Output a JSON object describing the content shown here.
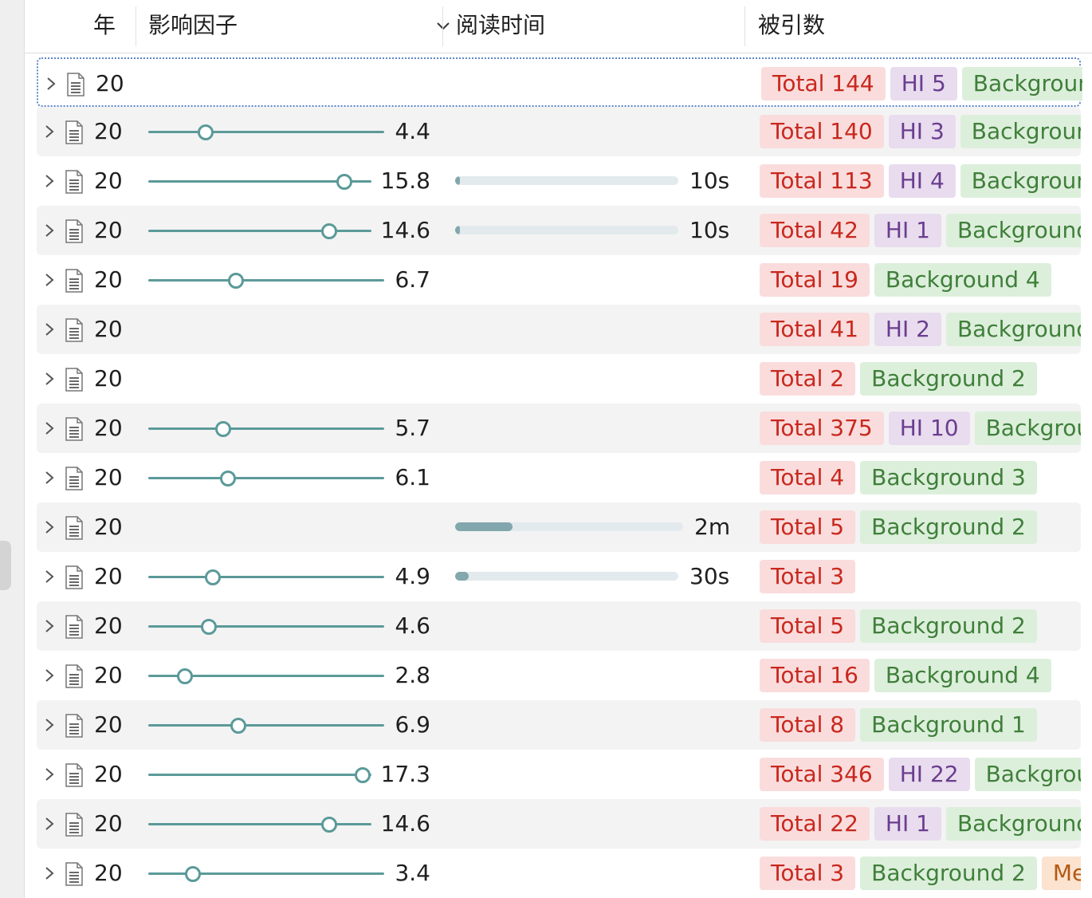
{
  "columns": {
    "year": "年",
    "impact_factor": "影响因子",
    "reading_time": "阅读时间",
    "citations": "被引数"
  },
  "icons": {
    "expand": "chevron-right-icon",
    "item": "document-icon",
    "sort": "chevron-down-icon"
  },
  "colors": {
    "slider": "#5b9a99",
    "total_tag": "#fadcdc",
    "hi_tag": "#e8dcee",
    "background_tag": "#dcefdb",
    "me_tag": "#fbe3cf"
  },
  "rows": [
    {
      "year": "20",
      "impact_factor": null,
      "if_text": "",
      "reading_time": null,
      "rt_text": "",
      "tags": [
        {
          "type": "total",
          "text": "Total 144"
        },
        {
          "type": "hi",
          "text": "HI 5"
        },
        {
          "type": "bg",
          "text": "Background"
        }
      ]
    },
    {
      "year": "20",
      "impact_factor": 4.4,
      "if_text": "4.4",
      "reading_time": null,
      "rt_text": "",
      "tags": [
        {
          "type": "total",
          "text": "Total 140"
        },
        {
          "type": "hi",
          "text": "HI 3"
        },
        {
          "type": "bg",
          "text": "Background"
        }
      ]
    },
    {
      "year": "20",
      "impact_factor": 15.8,
      "if_text": "15.8",
      "reading_time": 0.02,
      "rt_text": "10s",
      "tags": [
        {
          "type": "total",
          "text": "Total 113"
        },
        {
          "type": "hi",
          "text": "HI 4"
        },
        {
          "type": "bg",
          "text": "Background"
        }
      ]
    },
    {
      "year": "20",
      "impact_factor": 14.6,
      "if_text": "14.6",
      "reading_time": 0.02,
      "rt_text": "10s",
      "tags": [
        {
          "type": "total",
          "text": "Total 42"
        },
        {
          "type": "hi",
          "text": "HI 1"
        },
        {
          "type": "bg",
          "text": "Background"
        }
      ]
    },
    {
      "year": "20",
      "impact_factor": 6.7,
      "if_text": "6.7",
      "reading_time": null,
      "rt_text": "",
      "tags": [
        {
          "type": "total",
          "text": "Total 19"
        },
        {
          "type": "bg",
          "text": "Background 4"
        }
      ]
    },
    {
      "year": "20",
      "impact_factor": null,
      "if_text": "",
      "reading_time": null,
      "rt_text": "",
      "tags": [
        {
          "type": "total",
          "text": "Total 41"
        },
        {
          "type": "hi",
          "text": "HI 2"
        },
        {
          "type": "bg",
          "text": "Background"
        }
      ]
    },
    {
      "year": "20",
      "impact_factor": null,
      "if_text": "",
      "reading_time": null,
      "rt_text": "",
      "tags": [
        {
          "type": "total",
          "text": "Total 2"
        },
        {
          "type": "bg",
          "text": "Background 2"
        }
      ]
    },
    {
      "year": "20",
      "impact_factor": 5.7,
      "if_text": "5.7",
      "reading_time": null,
      "rt_text": "",
      "tags": [
        {
          "type": "total",
          "text": "Total 375"
        },
        {
          "type": "hi",
          "text": "HI 10"
        },
        {
          "type": "bg",
          "text": "Background"
        }
      ]
    },
    {
      "year": "20",
      "impact_factor": 6.1,
      "if_text": "6.1",
      "reading_time": null,
      "rt_text": "",
      "tags": [
        {
          "type": "total",
          "text": "Total 4"
        },
        {
          "type": "bg",
          "text": "Background 3"
        }
      ]
    },
    {
      "year": "20",
      "impact_factor": null,
      "if_text": "",
      "reading_time": 0.25,
      "rt_text": "2m",
      "tags": [
        {
          "type": "total",
          "text": "Total 5"
        },
        {
          "type": "bg",
          "text": "Background 2"
        }
      ]
    },
    {
      "year": "20",
      "impact_factor": 4.9,
      "if_text": "4.9",
      "reading_time": 0.06,
      "rt_text": "30s",
      "tags": [
        {
          "type": "total",
          "text": "Total 3"
        }
      ]
    },
    {
      "year": "20",
      "impact_factor": 4.6,
      "if_text": "4.6",
      "reading_time": null,
      "rt_text": "",
      "tags": [
        {
          "type": "total",
          "text": "Total 5"
        },
        {
          "type": "bg",
          "text": "Background 2"
        }
      ]
    },
    {
      "year": "20",
      "impact_factor": 2.8,
      "if_text": "2.8",
      "reading_time": null,
      "rt_text": "",
      "tags": [
        {
          "type": "total",
          "text": "Total 16"
        },
        {
          "type": "bg",
          "text": "Background 4"
        }
      ]
    },
    {
      "year": "20",
      "impact_factor": 6.9,
      "if_text": "6.9",
      "reading_time": null,
      "rt_text": "",
      "tags": [
        {
          "type": "total",
          "text": "Total 8"
        },
        {
          "type": "bg",
          "text": "Background 1"
        }
      ]
    },
    {
      "year": "20",
      "impact_factor": 17.3,
      "if_text": "17.3",
      "reading_time": null,
      "rt_text": "",
      "tags": [
        {
          "type": "total",
          "text": "Total 346"
        },
        {
          "type": "hi",
          "text": "HI 22"
        },
        {
          "type": "bg",
          "text": "Background"
        }
      ]
    },
    {
      "year": "20",
      "impact_factor": 14.6,
      "if_text": "14.6",
      "reading_time": null,
      "rt_text": "",
      "tags": [
        {
          "type": "total",
          "text": "Total 22"
        },
        {
          "type": "hi",
          "text": "HI 1"
        },
        {
          "type": "bg",
          "text": "Background"
        }
      ]
    },
    {
      "year": "20",
      "impact_factor": 3.4,
      "if_text": "3.4",
      "reading_time": null,
      "rt_text": "",
      "tags": [
        {
          "type": "total",
          "text": "Total 3"
        },
        {
          "type": "bg",
          "text": "Background 2"
        },
        {
          "type": "me",
          "text": "Me"
        }
      ]
    }
  ]
}
